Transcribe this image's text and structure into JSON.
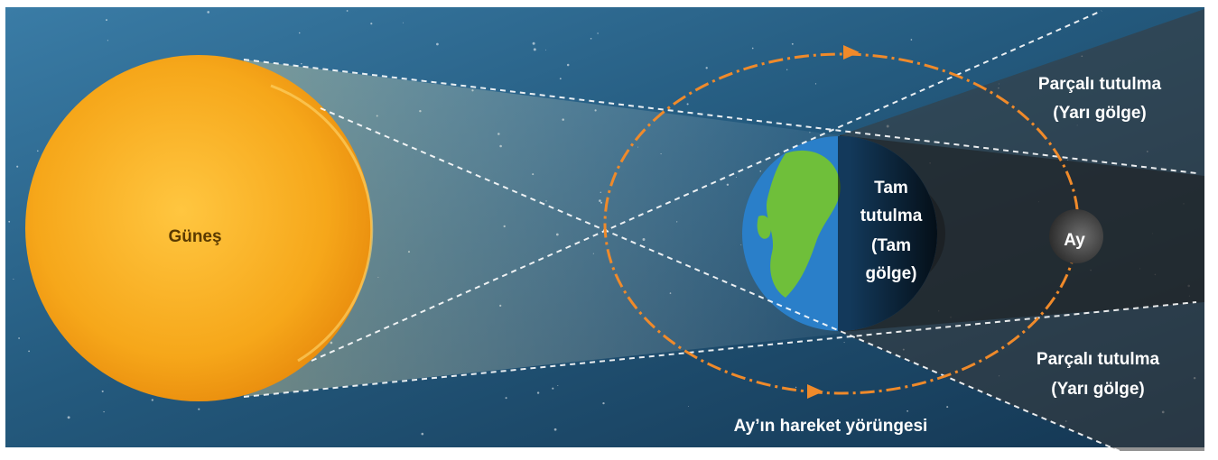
{
  "labels": {
    "sun": "Güneş",
    "umbra": [
      "Tam",
      "tutulma",
      "(Tam",
      "gölge)"
    ],
    "moon": "Ay",
    "penumbra_top": [
      "Parçalı tutulma",
      "(Yarı gölge)"
    ],
    "penumbra_bottom": [
      "Parçalı tutulma",
      "(Yarı gölge)"
    ],
    "orbit": "Ay’ın hareket yörüngesi"
  },
  "colors": {
    "space_light": "#2f6f98",
    "space_dark": "#163a55",
    "sun": "#f7a81b",
    "sun_edge": "#e58a0a",
    "orbit": "#f08a2a",
    "umbra": "#1e1e1e",
    "penumbra": "#4a4a4a",
    "earth_ocean": "#2a7fc9",
    "earth_land": "#6fbf3a"
  },
  "icons": {
    "sun": "sun-icon",
    "earth": "earth-icon",
    "moon": "moon-icon"
  }
}
